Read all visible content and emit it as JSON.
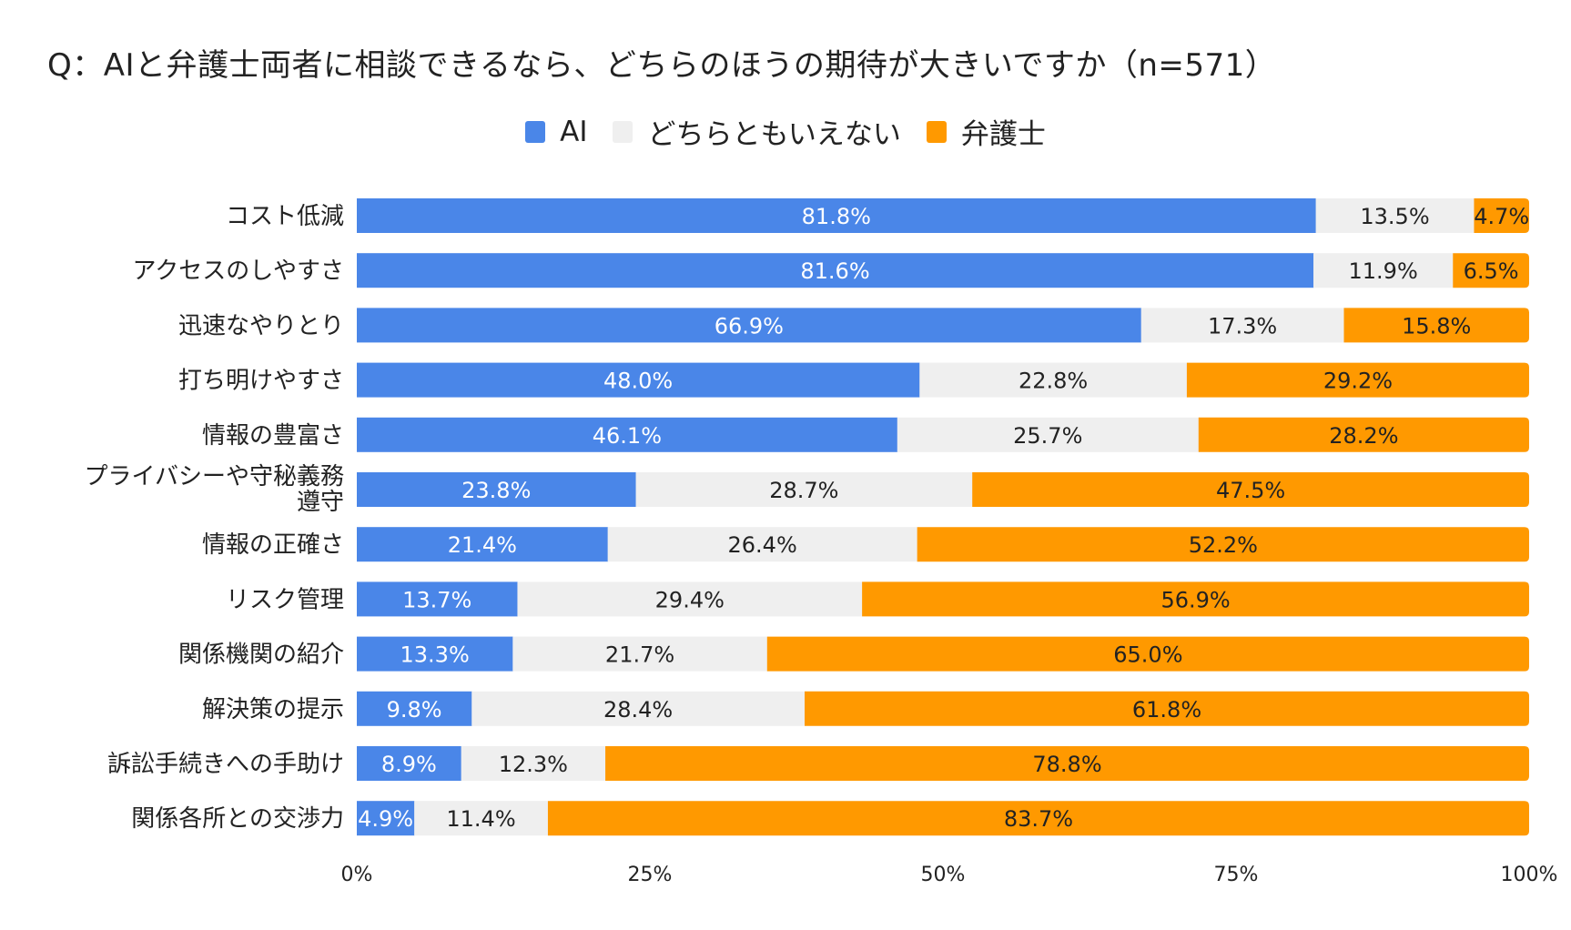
{
  "chart_data": {
    "type": "bar",
    "orientation": "horizontal",
    "stacked": "percent",
    "title": "Q：AIと弁護士両者に相談できるなら、どちらのほうの期待が大きいですか（n=571）",
    "xlabel": "",
    "ylabel": "",
    "xlim": [
      0,
      100
    ],
    "grid": false,
    "legend_position": "top",
    "x_ticks": [
      "0%",
      "25%",
      "50%",
      "75%",
      "100%"
    ],
    "x_tick_values": [
      0,
      25,
      50,
      75,
      100
    ],
    "categories": [
      "コスト低減",
      "アクセスのしやすさ",
      "迅速なやりとり",
      "打ち明けやすさ",
      "情報の豊富さ",
      "プライバシーや守秘義務遵守",
      "情報の正確さ",
      "リスク管理",
      "関係機関の紹介",
      "解決策の提示",
      "訴訟手続きへの手助け",
      "関係各所との交渉力"
    ],
    "category_lines": [
      [
        "コスト低減"
      ],
      [
        "アクセスのしやすさ"
      ],
      [
        "迅速なやりとり"
      ],
      [
        "打ち明けやすさ"
      ],
      [
        "情報の豊富さ"
      ],
      [
        "プライバシーや守秘義務",
        "遵守"
      ],
      [
        "情報の正確さ"
      ],
      [
        "リスク管理"
      ],
      [
        "関係機関の紹介"
      ],
      [
        "解決策の提示"
      ],
      [
        "訴訟手続きへの手助け"
      ],
      [
        "関係各所との交渉力"
      ]
    ],
    "series": [
      {
        "name": "AI",
        "color": "#4A86E8",
        "label_color": "#ffffff",
        "values": [
          81.8,
          81.6,
          66.9,
          48.0,
          46.1,
          23.8,
          21.4,
          13.7,
          13.3,
          9.8,
          8.9,
          4.9
        ]
      },
      {
        "name": "どちらともいえない",
        "color": "#EFEFEF",
        "label_color": "#222222",
        "values": [
          13.5,
          11.9,
          17.3,
          22.8,
          25.7,
          28.7,
          26.4,
          29.4,
          21.7,
          28.4,
          12.3,
          11.4
        ]
      },
      {
        "name": "弁護士",
        "color": "#FF9900",
        "label_color": "#222222",
        "values": [
          4.7,
          6.5,
          15.8,
          29.2,
          28.2,
          47.5,
          52.2,
          56.9,
          65.0,
          61.8,
          78.8,
          83.7
        ]
      }
    ],
    "value_suffix": "%"
  }
}
